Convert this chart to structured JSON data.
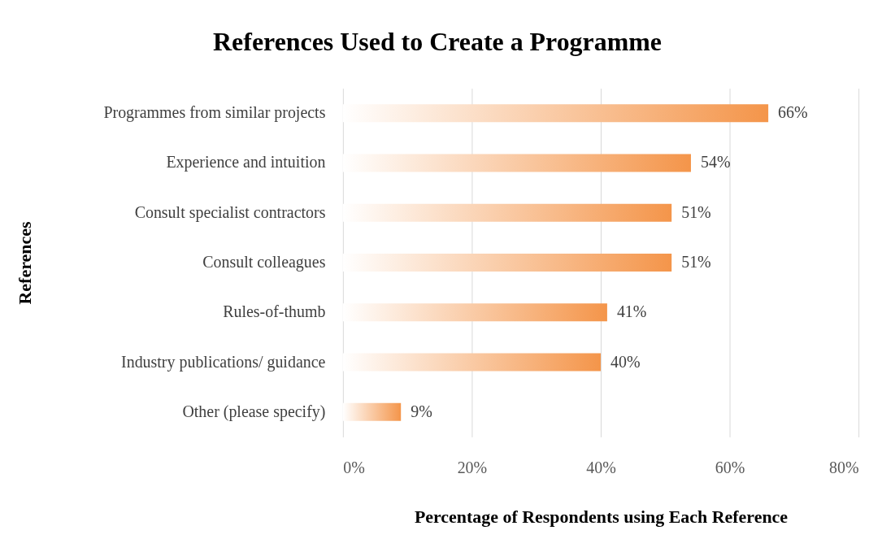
{
  "chart_data": {
    "type": "bar",
    "orientation": "horizontal",
    "title": "References Used to  Create a Programme",
    "xlabel": "Percentage of Respondents using Each Reference",
    "ylabel": "References",
    "categories": [
      "Programmes from similar projects",
      "Experience and intuition",
      "Consult specialist contractors",
      "Consult colleagues",
      "Rules-of-thumb",
      "Industry publications/ guidance",
      "Other (please specify)"
    ],
    "values": [
      66,
      54,
      51,
      51,
      41,
      40,
      9
    ],
    "value_labels": [
      "66%",
      "54%",
      "51%",
      "51%",
      "41%",
      "40%",
      "9%"
    ],
    "color": "#f4954a",
    "xlim": [
      0,
      80
    ],
    "xticks": [
      {
        "value": 0,
        "label": "0%"
      },
      {
        "value": 20,
        "label": "20%"
      },
      {
        "value": 40,
        "label": "40%"
      },
      {
        "value": 60,
        "label": "60%"
      },
      {
        "value": 80,
        "label": "80%"
      }
    ],
    "grid": "x"
  }
}
